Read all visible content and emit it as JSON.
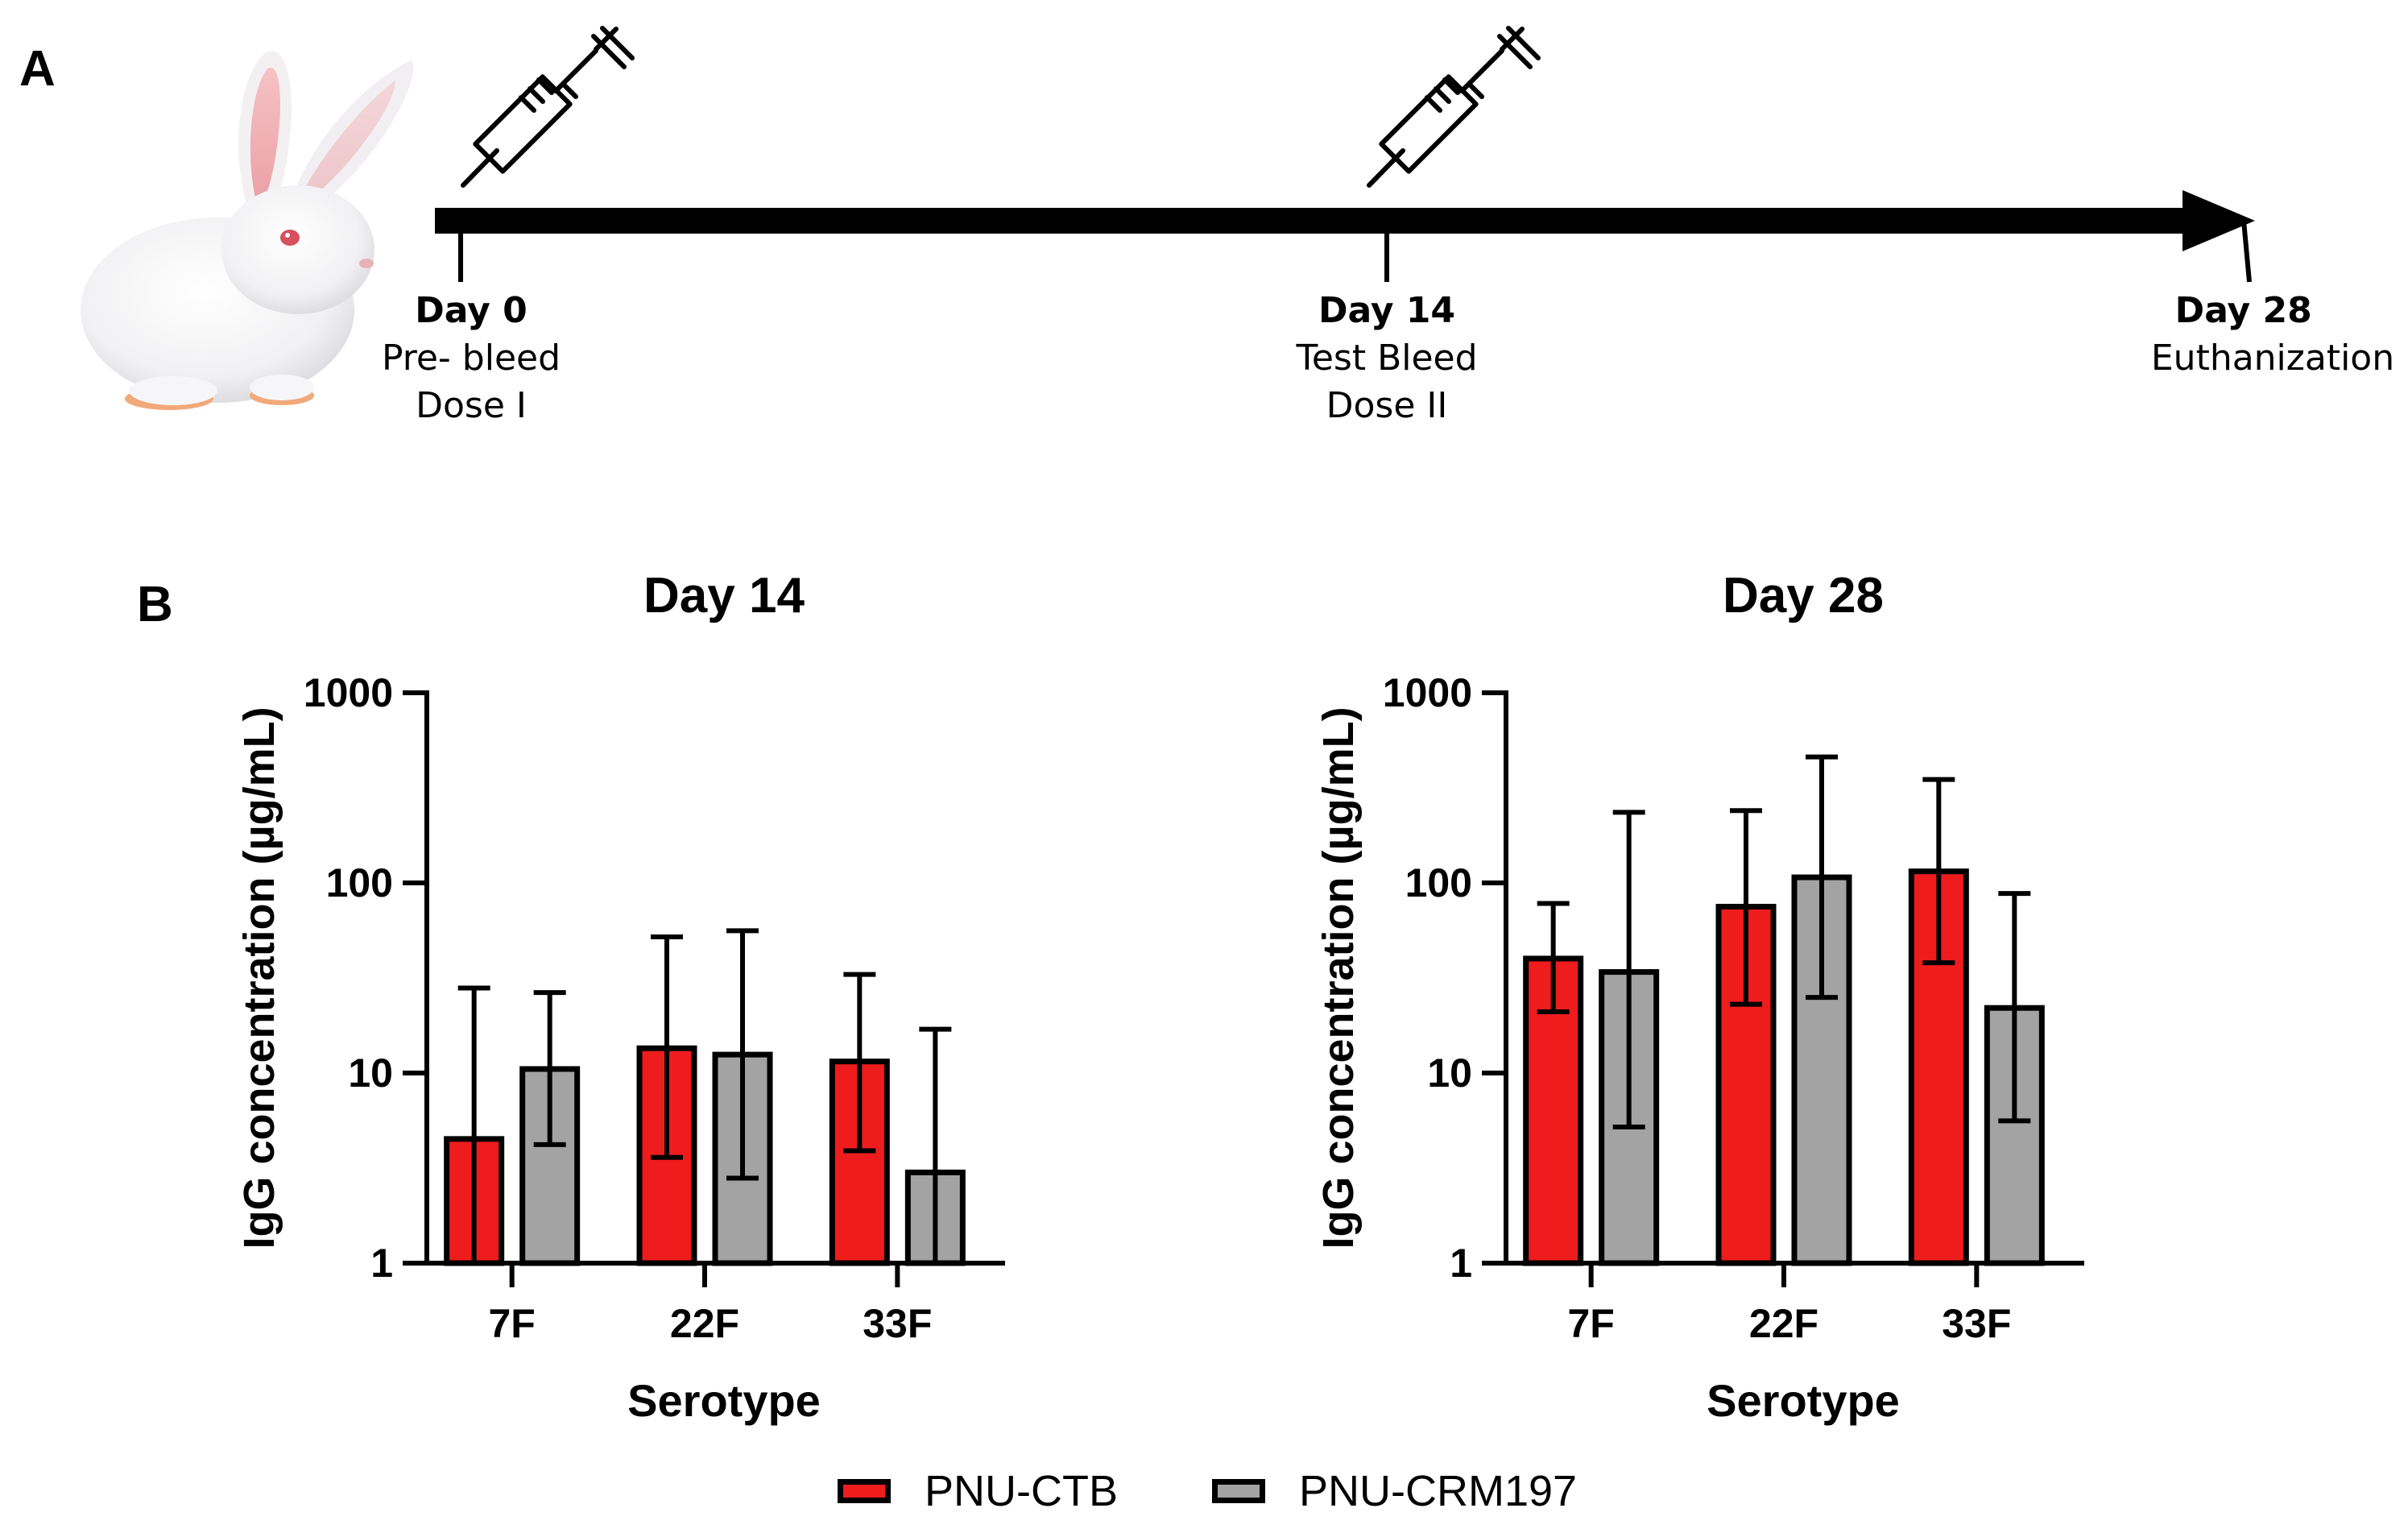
{
  "panel_a": {
    "letter": "A",
    "timeline": [
      {
        "day": "Day 0",
        "line1": "Pre- bleed",
        "line2": "Dose I"
      },
      {
        "day": "Day 14",
        "line1": "Test Bleed",
        "line2": "Dose II"
      },
      {
        "day": "Day 28",
        "line1": "Euthanization",
        "line2": ""
      }
    ],
    "icons": [
      "rabbit-image",
      "syringe-icon",
      "syringe-icon"
    ]
  },
  "panel_b": {
    "letter": "B"
  },
  "legend": [
    {
      "name": "PNU-CTB",
      "color": "#ee1c1c"
    },
    {
      "name": "PNU-CRM197",
      "color": "#a3a3a3"
    }
  ],
  "chart_data": [
    {
      "type": "bar",
      "title": "Day 14",
      "xlabel": "Serotype",
      "ylabel": "IgG concentration (µg/mL)",
      "yscale": "log",
      "ylim": [
        1,
        1000
      ],
      "yticks": [
        "1",
        "10",
        "100",
        "1000"
      ],
      "categories": [
        "7F",
        "22F",
        "33F"
      ],
      "series": [
        {
          "name": "PNU-CTB",
          "color": "#ee1c1c",
          "values": [
            4.5,
            13.5,
            11.5
          ],
          "err_low": [
            1,
            3.6,
            3.9
          ],
          "err_high": [
            28,
            52,
            33
          ]
        },
        {
          "name": "PNU-CRM197",
          "color": "#a3a3a3",
          "values": [
            10.5,
            12.5,
            3.0
          ],
          "err_low": [
            4.2,
            2.8,
            1
          ],
          "err_high": [
            26.5,
            56,
            17
          ]
        }
      ]
    },
    {
      "type": "bar",
      "title": "Day 28",
      "xlabel": "Serotype",
      "ylabel": "IgG concentration (µg/mL)",
      "yscale": "log",
      "ylim": [
        1,
        1000
      ],
      "yticks": [
        "1",
        "10",
        "100",
        "1000"
      ],
      "categories": [
        "7F",
        "22F",
        "33F"
      ],
      "series": [
        {
          "name": "PNU-CTB",
          "color": "#ee1c1c",
          "values": [
            40,
            75,
            115
          ],
          "err_low": [
            21,
            23,
            38
          ],
          "err_high": [
            78,
            240,
            350
          ]
        },
        {
          "name": "PNU-CRM197",
          "color": "#a3a3a3",
          "values": [
            34,
            107,
            22
          ],
          "err_low": [
            5.2,
            25,
            5.6
          ],
          "err_high": [
            235,
            460,
            88
          ]
        }
      ]
    }
  ]
}
